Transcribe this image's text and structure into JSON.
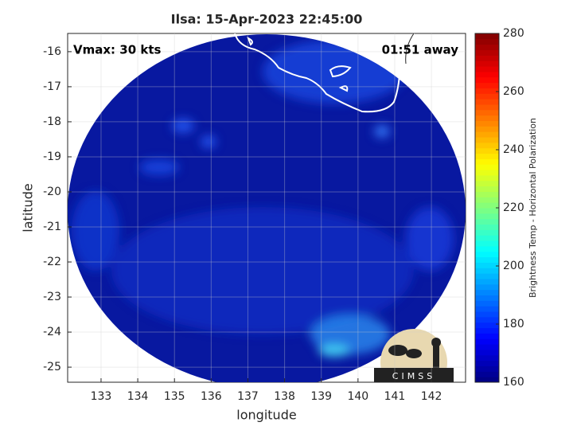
{
  "chart_data": {
    "type": "map",
    "title": "Ilsa: 15-Apr-2023 22:45:00",
    "xlabel": "longitude",
    "ylabel": "latitude",
    "xlim": [
      132.09,
      142.93
    ],
    "ylim": [
      -25.43,
      -15.48
    ],
    "xticks": [
      133,
      134,
      135,
      136,
      137,
      138,
      139,
      140,
      141,
      142
    ],
    "yticks": [
      -16,
      -17,
      -18,
      -19,
      -20,
      -21,
      -22,
      -23,
      -24,
      -25
    ],
    "grid": true,
    "annotations": [
      "Vmax: 30 kts",
      "01:51 away"
    ],
    "colorbar": {
      "label": "Brightness Temp - Horizontal Polarization",
      "lim": [
        160,
        280
      ],
      "ticks": [
        160,
        180,
        200,
        220,
        240,
        260,
        280
      ],
      "colormap": "jet"
    },
    "logo": "CIMSS"
  }
}
